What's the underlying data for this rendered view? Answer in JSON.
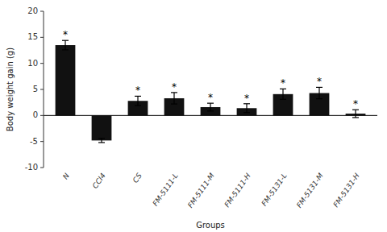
{
  "chart_data": {
    "type": "bar",
    "categories": [
      "N",
      "CCl4",
      "CS",
      "FM-5111-L",
      "FM-5111-M",
      "FM-5111-H",
      "FM-5131-L",
      "FM-5131-M",
      "FM-5131-H"
    ],
    "values": [
      13.5,
      -4.8,
      2.8,
      3.3,
      1.6,
      1.4,
      4.1,
      4.3,
      0.35
    ],
    "errors": [
      0.9,
      0.4,
      0.9,
      1.1,
      0.75,
      0.85,
      1.0,
      1.1,
      0.75
    ],
    "color": "#111111",
    "xlabel": "Groups",
    "ylabel": "Body weight gain (g)",
    "ylim": [
      -10,
      20
    ],
    "yticks": [
      -10,
      -5,
      0,
      5,
      10,
      15,
      20
    ],
    "grid": false,
    "annotations": [
      {
        "text": "*",
        "category": "N"
      },
      {
        "text": "*",
        "category": "CS"
      },
      {
        "text": "*",
        "category": "FM-5111-L"
      },
      {
        "text": "*",
        "category": "FM-5111-M"
      },
      {
        "text": "*",
        "category": "FM-5111-H"
      },
      {
        "text": "*",
        "category": "FM-5131-L"
      },
      {
        "text": "*",
        "category": "FM-5131-M"
      },
      {
        "text": "*",
        "category": "FM-5131-H"
      }
    ]
  }
}
